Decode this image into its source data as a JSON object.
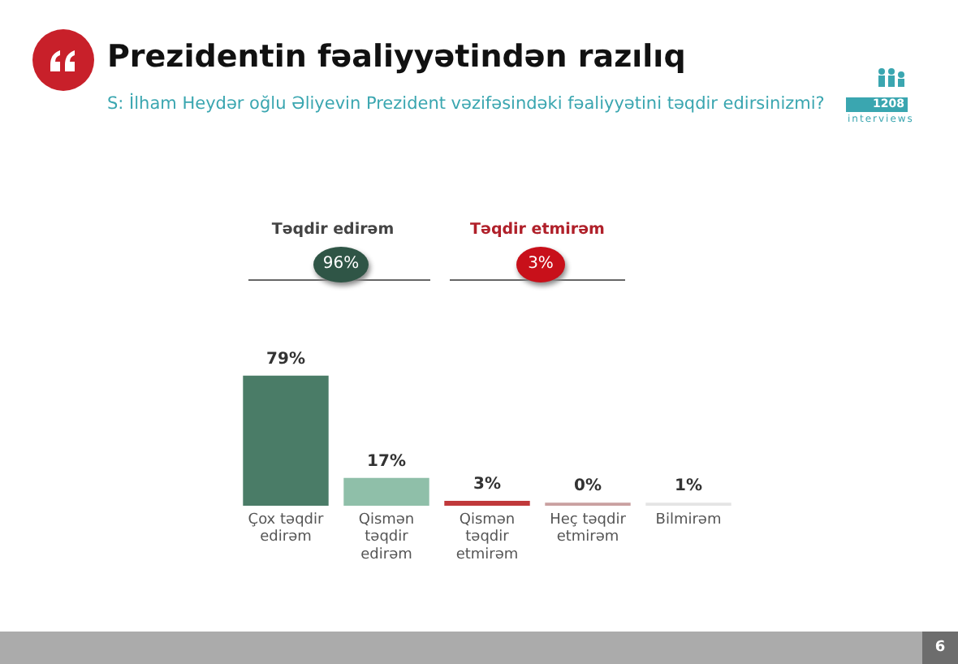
{
  "chart_data": {
    "type": "bar",
    "title": "Prezidentin fəaliyyətindən razılıq",
    "subtitle": "S: İlham Heydər oğlu Əliyevin Prezident vəzifəsindəki fəaliyyətini təqdir edirsinizmi?",
    "categories": [
      "Çox təqdir edirəm",
      "Qismən təqdir edirəm",
      "Qismən təqdir etmirəm",
      "Heç təqdir etmirəm",
      "Bilmirəm"
    ],
    "values": [
      79,
      17,
      3,
      0,
      1
    ],
    "colors": [
      "#4a7c67",
      "#8fbfa9",
      "#c0393b",
      "#c9a0a0",
      "#e4e4e4"
    ],
    "value_labels": [
      "79%",
      "17%",
      "3%",
      "0%",
      "1%"
    ],
    "annotations": [
      "Təqdir edirəm",
      "96%",
      "Təqdir etmirəm",
      "3%",
      "1208",
      "interviews",
      "6"
    ],
    "grid": false,
    "legend": false
  }
}
